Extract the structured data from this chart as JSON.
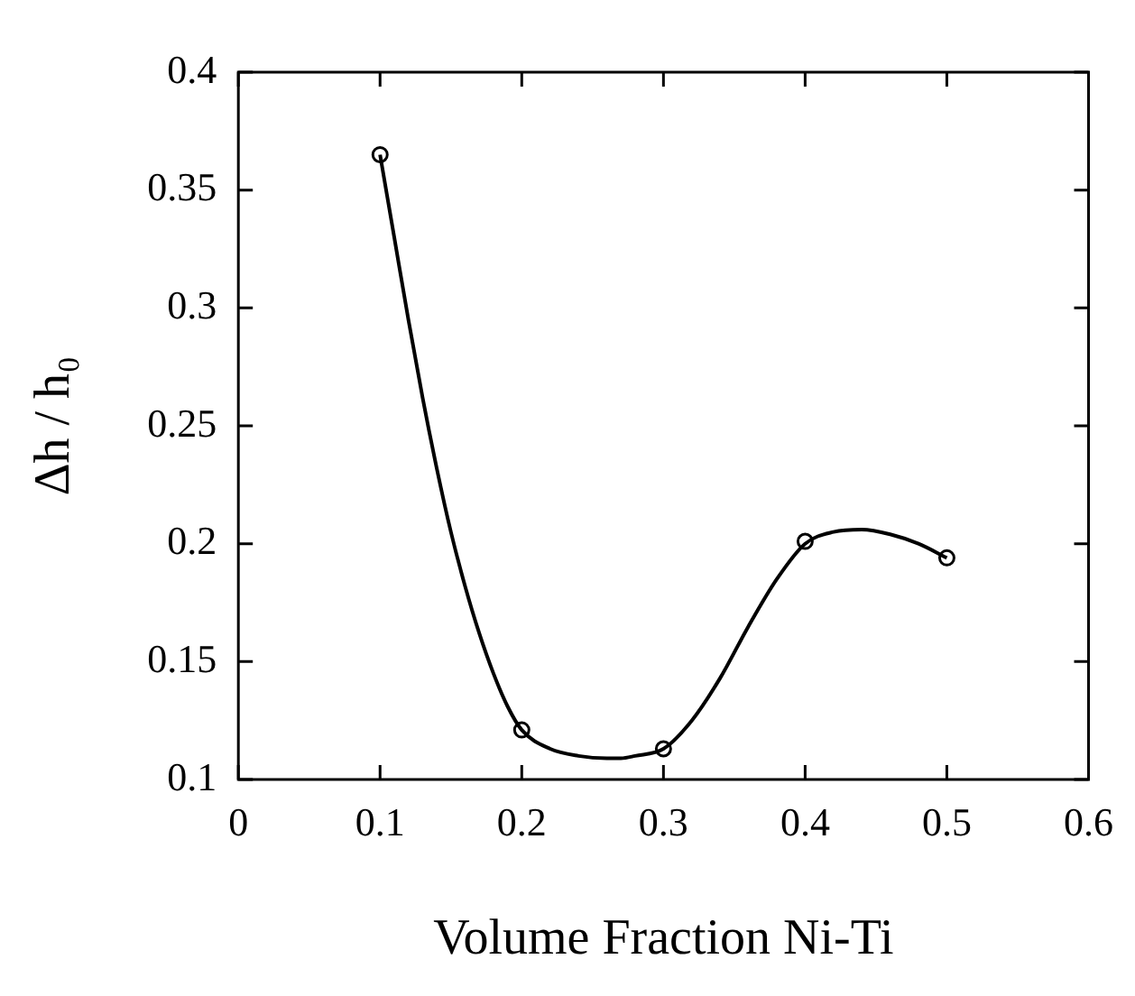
{
  "chart_data": {
    "type": "scatter",
    "xlabel": "Volume Fraction Ni-Ti",
    "ylabel": "Δh / h₀",
    "xlim": [
      0,
      0.6
    ],
    "xticks": [
      0,
      0.1,
      0.2,
      0.3,
      0.4,
      0.5,
      0.6
    ],
    "ylim": [
      0.1,
      0.4
    ],
    "yticks": [
      0.1,
      0.15,
      0.2,
      0.25,
      0.3,
      0.35,
      0.4
    ],
    "grid": false,
    "legend": false,
    "series": [
      {
        "type": "line",
        "marker": "none",
        "line_style": "solid",
        "color": "#000000",
        "x": [
          0.1,
          0.11,
          0.12,
          0.13,
          0.14,
          0.15,
          0.16,
          0.17,
          0.18,
          0.19,
          0.2,
          0.22,
          0.24,
          0.26,
          0.27,
          0.28,
          0.3,
          0.32,
          0.34,
          0.36,
          0.38,
          0.4,
          0.42,
          0.44,
          0.46,
          0.48,
          0.5
        ],
        "values": [
          0.365,
          0.33,
          0.295,
          0.262,
          0.232,
          0.205,
          0.182,
          0.162,
          0.145,
          0.131,
          0.121,
          0.113,
          0.11,
          0.109,
          0.109,
          0.11,
          0.113,
          0.125,
          0.143,
          0.165,
          0.185,
          0.2,
          0.205,
          0.206,
          0.204,
          0.2,
          0.194
        ]
      },
      {
        "marker": "circle",
        "color": "#000000",
        "x": [
          0.1,
          0.2,
          0.3,
          0.4,
          0.5
        ],
        "values": [
          0.365,
          0.121,
          0.113,
          0.201,
          0.194
        ]
      }
    ]
  }
}
